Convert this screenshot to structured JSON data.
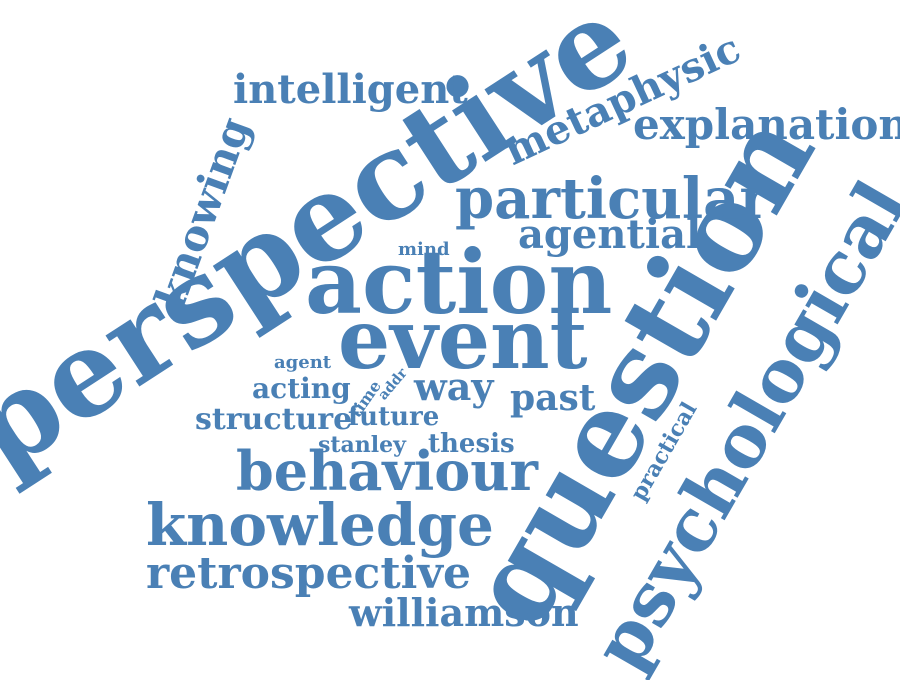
{
  "color": "#4a80b5",
  "words": {
    "perspective": "perspective",
    "question": "question",
    "action": "action",
    "event": "event",
    "psychological": "psychological",
    "behaviour": "behaviour",
    "knowledge": "knowledge",
    "retrospective": "retrospective",
    "particular": "particular",
    "explanation": "explanation",
    "metaphysic": "metaphysic",
    "intelligent": "intelligent",
    "knowing": "knowing",
    "agential": "agential",
    "williamson": "williamson",
    "way": "way",
    "past": "past",
    "future": "future",
    "structure": "structure",
    "acting": "acting",
    "thesis": "thesis",
    "stanley": "stanley",
    "practical": "practical",
    "agent": "agent",
    "mind": "mind",
    "time": "time",
    "addr": "addr"
  }
}
